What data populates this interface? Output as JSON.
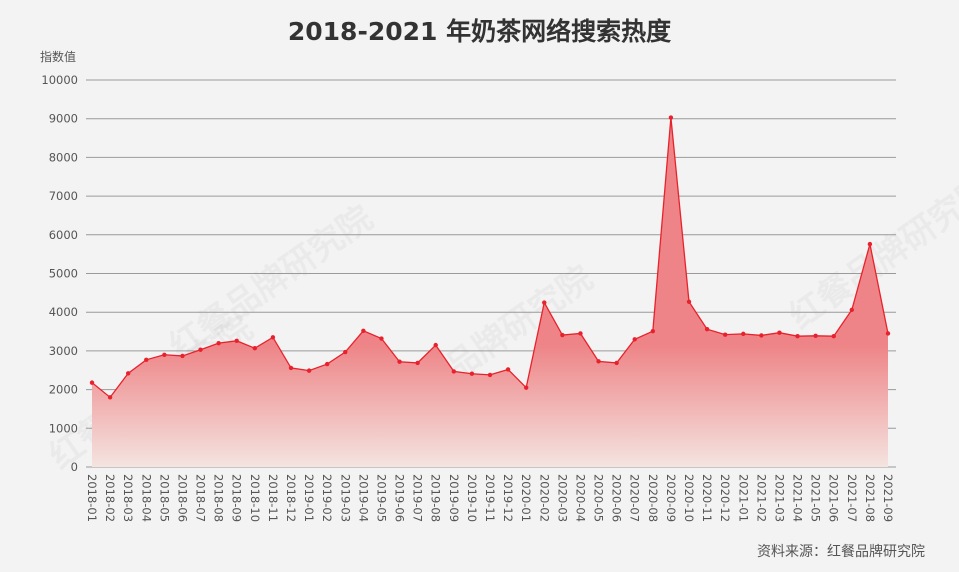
{
  "watermark": "红餐品牌研究院",
  "source": "资料来源：红餐品牌研究院",
  "chart_data": {
    "type": "area",
    "title": "2018-2021 年奶茶网络搜索热度",
    "ylabel": "指数值",
    "xlabel": "",
    "ylim": [
      0,
      10000
    ],
    "yticks": [
      0,
      1000,
      2000,
      3000,
      4000,
      5000,
      6000,
      7000,
      8000,
      9000,
      10000
    ],
    "grid": true,
    "line_color": "#e8222c",
    "fill_color_top": "#ee8487",
    "fill_color_bottom": "#f4e4e0",
    "categories": [
      "2018-01",
      "2018-02",
      "2018-03",
      "2018-04",
      "2018-05",
      "2018-06",
      "2018-07",
      "2018-08",
      "2018-09",
      "2018-10",
      "2018-11",
      "2018-12",
      "2019-01",
      "2019-02",
      "2019-03",
      "2019-04",
      "2019-05",
      "2019-06",
      "2019-07",
      "2019-08",
      "2019-09",
      "2019-10",
      "2019-11",
      "2019-12",
      "2020-01",
      "2020-02",
      "2020-03",
      "2020-04",
      "2020-05",
      "2020-06",
      "2020-07",
      "2020-08",
      "2020-09",
      "2020-10",
      "2020-11",
      "2020-12",
      "2021-01",
      "2021-02",
      "2021-03",
      "2021-04",
      "2021-05",
      "2021-06",
      "2021-07",
      "2021-08",
      "2021-09"
    ],
    "values": [
      2180,
      1800,
      2420,
      2770,
      2900,
      2870,
      3030,
      3200,
      3260,
      3070,
      3350,
      2560,
      2490,
      2660,
      2970,
      3520,
      3320,
      2720,
      2690,
      3150,
      2470,
      2410,
      2380,
      2520,
      2050,
      4250,
      3410,
      3450,
      2730,
      2690,
      3300,
      3510,
      9030,
      4270,
      3560,
      3420,
      3440,
      3400,
      3470,
      3380,
      3390,
      3380,
      4060,
      5760,
      3450
    ]
  }
}
